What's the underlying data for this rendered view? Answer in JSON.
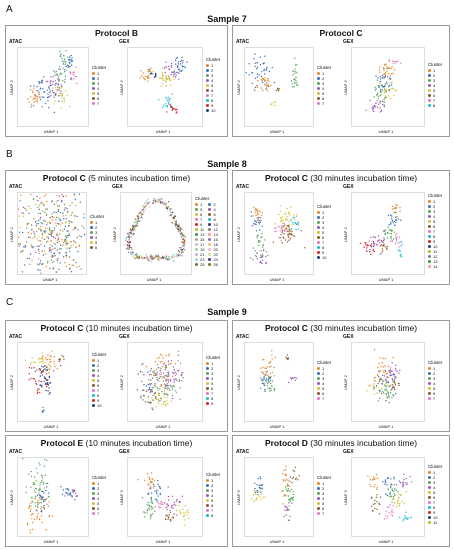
{
  "colors": {
    "border": "#9a9a9a",
    "palette": [
      "#e6862a",
      "#3b6fb6",
      "#5aa85a",
      "#9b59b6",
      "#d4c23a",
      "#8b5a2b",
      "#e377c2",
      "#17becf",
      "#d62728",
      "#1f3f7a",
      "#bcbd22",
      "#7f7f7f",
      "#2ca02c",
      "#ff9896",
      "#c49c94",
      "#9467bd",
      "#aec7e8",
      "#ffbb78",
      "#98df8a",
      "#f7b6d2",
      "#c5b0d5",
      "#dbdb8d",
      "#9edae5",
      "#393b79",
      "#637939",
      "#8c6d31"
    ]
  },
  "section_a": {
    "letter": "A",
    "sample_title": "Sample 7",
    "left": {
      "protocol": "Protocol B",
      "detail": "",
      "atac": {
        "tag": "ATAC",
        "xlabel": "UMAP 1",
        "ylabel": "UMAP 2",
        "legend_title": "Cluster",
        "clusters": [
          "1",
          "2",
          "3",
          "4",
          "5",
          "6",
          "7"
        ]
      },
      "gex": {
        "tag": "GEX",
        "xlabel": "UMAP 1",
        "ylabel": "UMAP 2",
        "legend_title": "Cluster",
        "clusters": [
          "1",
          "2",
          "3",
          "4",
          "5",
          "6",
          "7",
          "8",
          "9",
          "10"
        ]
      }
    },
    "right": {
      "protocol": "Protocol C",
      "detail": "",
      "atac": {
        "tag": "ATAC",
        "xlabel": "UMAP 1",
        "ylabel": "UMAP 2",
        "legend_title": "Cluster",
        "clusters": [
          "1",
          "2",
          "3",
          "4",
          "5",
          "6",
          "7"
        ]
      },
      "gex": {
        "tag": "GEX",
        "xlabel": "UMAP 1",
        "ylabel": "UMAP 2",
        "legend_title": "Cluster",
        "clusters": [
          "1",
          "2",
          "3",
          "4",
          "5",
          "6",
          "7",
          "8"
        ]
      }
    }
  },
  "section_b": {
    "letter": "B",
    "sample_title": "Sample 8",
    "left": {
      "protocol": "Protocol C",
      "detail": " (5 minutes incubation time)",
      "atac": {
        "tag": "ATAC",
        "xlabel": "UMAP 1",
        "ylabel": "UMAP 2",
        "legend_title": "Cluster",
        "clusters": [
          "1",
          "2",
          "3",
          "4",
          "5",
          "6"
        ]
      },
      "gex": {
        "tag": "GEX",
        "xlabel": "UMAP 1",
        "ylabel": "UMAP 2",
        "legend_title": "Cluster",
        "clusters": [
          "1",
          "2",
          "3",
          "4",
          "5",
          "6",
          "7",
          "8",
          "9",
          "10",
          "11",
          "12",
          "13",
          "14",
          "15",
          "16",
          "17",
          "18",
          "19",
          "20",
          "21",
          "22",
          "23",
          "24",
          "25",
          "26"
        ]
      }
    },
    "right": {
      "protocol": "Protocol C",
      "detail": " (30 minutes incubation time)",
      "atac": {
        "tag": "ATAC",
        "xlabel": "UMAP 1",
        "ylabel": "UMAP 2",
        "legend_title": "Cluster",
        "clusters": [
          "1",
          "2",
          "3",
          "4",
          "5",
          "6",
          "7",
          "8",
          "9",
          "10"
        ]
      },
      "gex": {
        "tag": "GEX",
        "xlabel": "UMAP 1",
        "ylabel": "UMAP 2",
        "legend_title": "Cluster",
        "clusters": [
          "1",
          "2",
          "3",
          "4",
          "5",
          "6",
          "7",
          "8",
          "9",
          "10",
          "11",
          "12",
          "13",
          "14"
        ]
      }
    }
  },
  "section_c": {
    "letter": "C",
    "sample_title": "Sample 9",
    "top_left": {
      "protocol": "Protocol C",
      "detail": " (10 minutes incubation time)",
      "atac": {
        "tag": "ATAC",
        "xlabel": "UMAP 1",
        "ylabel": "UMAP 2",
        "legend_title": "Cluster",
        "clusters": [
          "1",
          "2",
          "3",
          "4",
          "5",
          "6",
          "7",
          "8",
          "9",
          "10"
        ]
      },
      "gex": {
        "tag": "GEX",
        "xlabel": "UMAP 1",
        "ylabel": "UMAP 2",
        "legend_title": "Cluster",
        "clusters": [
          "1",
          "2",
          "3",
          "4",
          "5",
          "6",
          "7",
          "8",
          "9"
        ]
      }
    },
    "top_right": {
      "protocol": "Protocol C",
      "detail": " (30 minutes incubation time)",
      "atac": {
        "tag": "ATAC",
        "xlabel": "UMAP 1",
        "ylabel": "UMAP 2",
        "legend_title": "Cluster",
        "clusters": [
          "1",
          "2",
          "3",
          "4",
          "5",
          "6",
          "7"
        ]
      },
      "gex": {
        "tag": "GEX",
        "xlabel": "UMAP 1",
        "ylabel": "UMAP 2",
        "legend_title": "Cluster",
        "clusters": [
          "1",
          "2",
          "3",
          "4",
          "5",
          "6",
          "7"
        ]
      }
    },
    "bottom_left": {
      "protocol": "Protocol E",
      "detail": " (10 minutes incubation time)",
      "atac": {
        "tag": "ATAC",
        "xlabel": "UMAP 1",
        "ylabel": "UMAP 2",
        "legend_title": "Cluster",
        "clusters": [
          "1",
          "2",
          "3",
          "4",
          "5",
          "6",
          "7"
        ]
      },
      "gex": {
        "tag": "GEX",
        "xlabel": "UMAP 1",
        "ylabel": "UMAP 2",
        "legend_title": "Cluster",
        "clusters": [
          "1",
          "2",
          "3",
          "4",
          "5",
          "6",
          "7",
          "8"
        ]
      }
    },
    "bottom_right": {
      "protocol": "Protocol D",
      "detail": " (30 minutes incubation time)",
      "atac": {
        "tag": "ATAC",
        "xlabel": "UMAP 1",
        "ylabel": "UMAP 2",
        "legend_title": "Cluster",
        "clusters": [
          "1",
          "2",
          "3",
          "4",
          "5",
          "6",
          "7"
        ]
      },
      "gex": {
        "tag": "GEX",
        "xlabel": "UMAP 1",
        "ylabel": "UMAP 2",
        "legend_title": "Cluster",
        "clusters": [
          "1",
          "2",
          "3",
          "4",
          "5",
          "6",
          "7",
          "8",
          "9",
          "10",
          "11"
        ]
      }
    }
  }
}
